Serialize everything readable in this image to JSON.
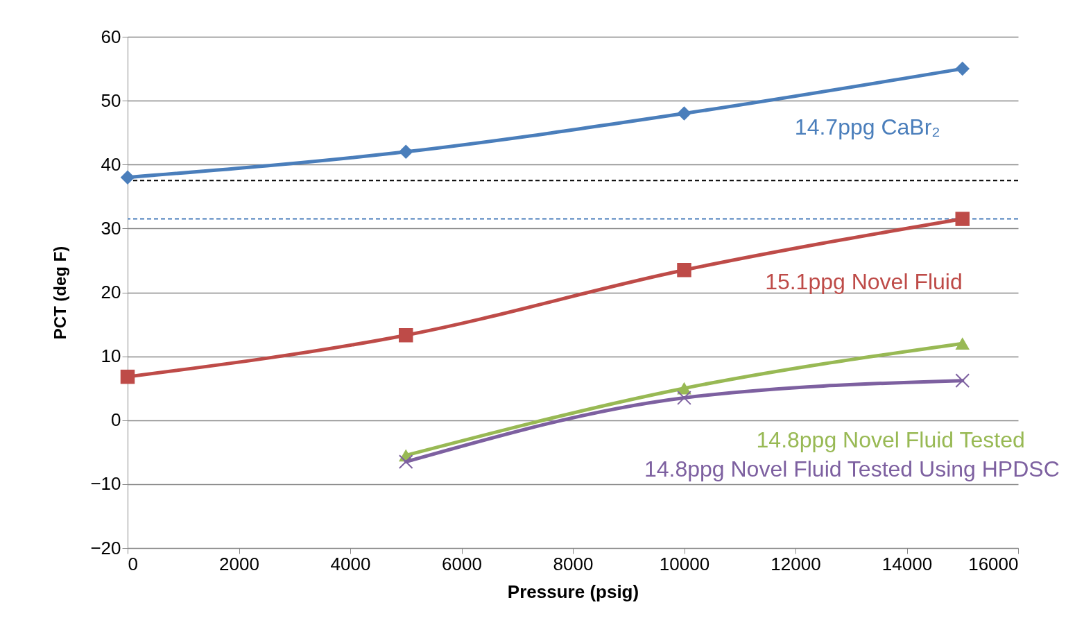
{
  "chart_data": {
    "type": "line",
    "xlabel": "Pressure (psig)",
    "ylabel": "PCT (deg F)",
    "xlim": [
      0,
      16000
    ],
    "xticks": [
      0,
      2000,
      4000,
      6000,
      8000,
      10000,
      12000,
      14000,
      16000
    ],
    "ylim": [
      -20,
      60
    ],
    "yticks": [
      -20,
      -10,
      0,
      10,
      20,
      30,
      40,
      50,
      60
    ],
    "grid": "y",
    "series": [
      {
        "name": "14.7ppg CaBr₂",
        "color": "#4a7ebb",
        "marker": "diamond",
        "x": [
          0,
          5000,
          10000,
          15000
        ],
        "values": [
          38,
          42,
          48,
          55
        ]
      },
      {
        "name": "15.1ppg Novel Fluid",
        "color": "#be4b48",
        "marker": "square",
        "x": [
          0,
          5000,
          10000,
          15000
        ],
        "values": [
          6.8,
          13.3,
          23.5,
          31.5
        ]
      },
      {
        "name": "14.8ppg Novel Fluid Tested",
        "color": "#98b954",
        "marker": "triangle",
        "x": [
          5000,
          10000,
          15000
        ],
        "values": [
          -5.5,
          5,
          12
        ]
      },
      {
        "name": "14.8ppg Novel Fluid Tested Using HPDSC",
        "color": "#7d60a0",
        "marker": "cross",
        "x": [
          5000,
          10000,
          15000
        ],
        "values": [
          -6.5,
          3.5,
          6.2
        ]
      }
    ],
    "ref_lines": [
      {
        "axis": "y",
        "value": 37.5,
        "color": "#000000",
        "line_style": "dashed"
      },
      {
        "axis": "y",
        "value": 31.5,
        "color": "#4a7ebb",
        "line_style": "dashed"
      }
    ]
  }
}
